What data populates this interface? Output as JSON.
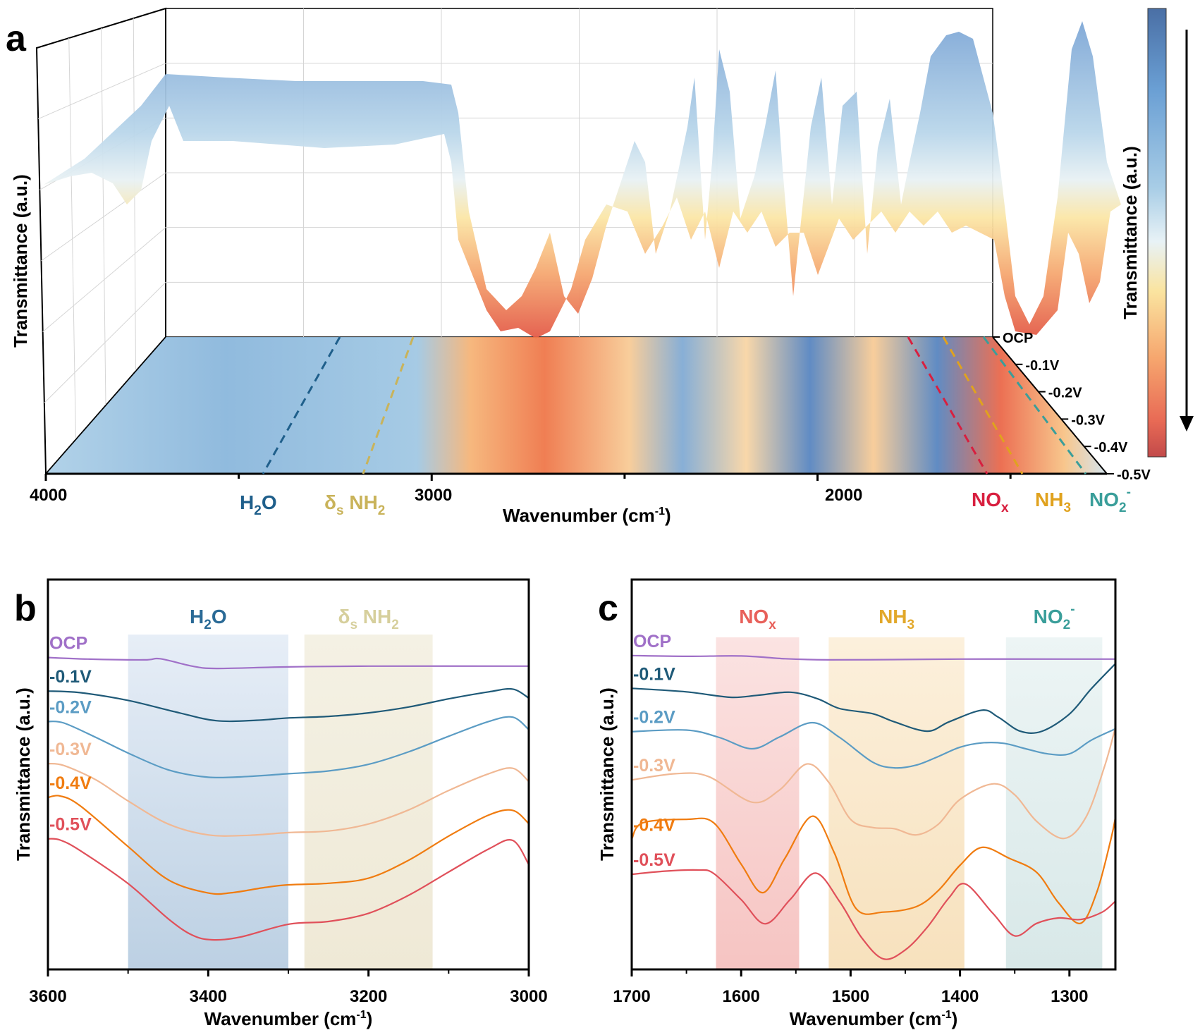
{
  "figure": {
    "panels": [
      "a",
      "b",
      "c"
    ]
  },
  "chart_data": [
    {
      "panel": "a",
      "type": "heatmap",
      "title": "",
      "subtitle": "3D surface of in situ FTIR spectra with projected contour map",
      "xlabel": "Wavenumber (cm",
      "xlabel_sup": "-1",
      "xlabel_close": ")",
      "ylabel": "Transmittance (a.u.)",
      "xlim": [
        4000,
        1250
      ],
      "x_ticks": [
        "4000",
        "3000",
        "2000"
      ],
      "x_tick_values": [
        4000,
        3000,
        2000
      ],
      "potential_axis": [
        "OCP",
        "-0.1V",
        "-0.2V",
        "-0.3V",
        "-0.4V",
        "-0.5V"
      ],
      "colorbar": {
        "label": "Transmittance (a.u.)",
        "colors": [
          "#4a6fa5",
          "#6a9fd4",
          "#a8cde6",
          "#e8f2f6",
          "#fae4a0",
          "#f6a66e",
          "#e86a55",
          "#c24a4a"
        ],
        "arrow": "down"
      },
      "annotations": [
        {
          "label": "H",
          "sub": "2",
          "tail": "O",
          "color": "#1f5f8b",
          "wavenumber": 3350
        },
        {
          "label": "δ",
          "sub": "s",
          "tail": " NH",
          "sub2": "2",
          "color": "#c9b35a",
          "wavenumber": 3150
        },
        {
          "label": "NO",
          "sub": "x",
          "tail": "",
          "color": "#d81f3f",
          "wavenumber": 1590
        },
        {
          "label": "NH",
          "sub": "3",
          "tail": "",
          "color": "#e0a21e",
          "wavenumber": 1460
        },
        {
          "label": "NO",
          "sub": "2",
          "tail": "",
          "sup": "-",
          "color": "#3a9e9a",
          "wavenumber": 1330
        }
      ]
    },
    {
      "panel": "b",
      "type": "line",
      "xlabel": "Wavenumber (cm",
      "xlabel_sup": "-1",
      "xlabel_close": ")",
      "ylabel": "Transmittance (a.u.)",
      "xlim": [
        3600,
        3000
      ],
      "ylim": [
        0,
        100
      ],
      "x_ticks": [
        "3600",
        "3400",
        "3200",
        "3000"
      ],
      "x_tick_values": [
        3600,
        3400,
        3200,
        3000
      ],
      "x_minor_ticks": [
        3500,
        3300,
        3100
      ],
      "bands": [
        {
          "name": "H2O",
          "label": "H",
          "sub": "2",
          "tail": "O",
          "from": 3500,
          "to": 3300,
          "color": "#7f9fc4",
          "text_color": "#2a6a96"
        },
        {
          "name": "δs NH2",
          "label": "δ",
          "sub": "s",
          "tail": " NH",
          "sub2": "2",
          "from": 3280,
          "to": 3120,
          "color": "#ddd6b0",
          "text_color": "#d6cf9c"
        }
      ],
      "series": [
        {
          "name": "OCP",
          "color": "#a070c8",
          "x": [
            3600,
            3550,
            3480,
            3460,
            3420,
            3390,
            3300,
            3200,
            3000
          ],
          "y": [
            80,
            79.6,
            79.4,
            79.7,
            77.8,
            77.2,
            77.6,
            77.8,
            77.8
          ]
        },
        {
          "name": "-0.1V",
          "color": "#1f5a78",
          "x": [
            3600,
            3560,
            3500,
            3440,
            3390,
            3340,
            3300,
            3250,
            3200,
            3150,
            3100,
            3050,
            3020,
            3000
          ],
          "y": [
            71.4,
            71,
            69,
            66,
            63.8,
            63.9,
            64.5,
            64.9,
            65.8,
            67.3,
            69.4,
            71.2,
            71.9,
            69.6
          ]
        },
        {
          "name": "-0.2V",
          "color": "#5b9cc4",
          "x": [
            3600,
            3580,
            3540,
            3500,
            3450,
            3400,
            3350,
            3300,
            3250,
            3200,
            3150,
            3100,
            3050,
            3020,
            3000
          ],
          "y": [
            63.6,
            63.2,
            59.5,
            55.5,
            51.2,
            49.3,
            49.5,
            50.2,
            50.9,
            52.6,
            55.8,
            59.8,
            63.6,
            64.7,
            61.5
          ]
        },
        {
          "name": "-0.3V",
          "color": "#f0b894",
          "x": [
            3600,
            3580,
            3540,
            3500,
            3450,
            3400,
            3350,
            3300,
            3250,
            3200,
            3150,
            3100,
            3050,
            3020,
            3000
          ],
          "y": [
            52.8,
            52.3,
            48.6,
            43.2,
            37.3,
            34.5,
            34.4,
            35.1,
            35.5,
            37.3,
            40.9,
            45.9,
            50.2,
            51.6,
            48.2
          ]
        },
        {
          "name": "-0.4V",
          "color": "#f07c10",
          "x": [
            3600,
            3585,
            3560,
            3500,
            3450,
            3400,
            3370,
            3330,
            3300,
            3250,
            3200,
            3150,
            3100,
            3050,
            3020,
            3000
          ],
          "y": [
            44.1,
            44.5,
            42,
            31.5,
            23,
            19.6,
            19.7,
            21,
            21.7,
            22.1,
            23.4,
            28,
            34.2,
            39.6,
            40.8,
            37.4
          ]
        },
        {
          "name": "-0.5V",
          "color": "#e0505a",
          "x": [
            3600,
            3585,
            3560,
            3500,
            3450,
            3420,
            3395,
            3360,
            3300,
            3250,
            3200,
            3150,
            3100,
            3050,
            3020,
            3000
          ],
          "y": [
            33.5,
            33.2,
            30.5,
            22,
            13,
            8.8,
            7.6,
            8.3,
            11.6,
            12.3,
            14.4,
            19,
            25,
            30.9,
            33.1,
            26.9
          ]
        }
      ],
      "curve_label_colors": {
        "OCP": "#a070c8",
        "-0.1V": "#1f5a78",
        "-0.2V": "#5b9cc4",
        "-0.3V": "#f0b894",
        "-0.4V": "#f07c10",
        "-0.5V": "#e0505a"
      },
      "legend": "left-inline"
    },
    {
      "panel": "c",
      "type": "line",
      "xlabel": "Wavenumber (cm",
      "xlabel_sup": "-1",
      "xlabel_close": ")",
      "ylabel": "Transmittance (a.u.)",
      "xlim": [
        1700,
        1258
      ],
      "ylim": [
        0,
        100
      ],
      "x_ticks": [
        "1700",
        "1600",
        "1500",
        "1400",
        "1300"
      ],
      "x_tick_values": [
        1700,
        1600,
        1500,
        1400,
        1300
      ],
      "x_minor_ticks": [
        1650,
        1550,
        1450,
        1350
      ],
      "bands": [
        {
          "name": "NOx",
          "label": "NO",
          "sub": "x",
          "tail": "",
          "from": 1623,
          "to": 1547,
          "color": "#f4b3b0",
          "text_color": "#e8605a"
        },
        {
          "name": "NH3",
          "label": "NH",
          "sub": "3",
          "tail": "",
          "from": 1520,
          "to": 1396,
          "color": "#f6dcae",
          "text_color": "#e2a82a"
        },
        {
          "name": "NO2-",
          "label": "NO",
          "sub": "2",
          "tail": "",
          "sup": "-",
          "from": 1358,
          "to": 1270,
          "color": "#c9e0e0",
          "text_color": "#3a9e9a"
        }
      ],
      "series": [
        {
          "name": "OCP",
          "color": "#a070c8",
          "x": [
            1700,
            1650,
            1600,
            1560,
            1520,
            1450,
            1400,
            1300,
            1258
          ],
          "y": [
            80.5,
            80.3,
            80.4,
            79.7,
            79.4,
            79.5,
            79.6,
            79.6,
            79.6
          ]
        },
        {
          "name": "-0.1V",
          "color": "#1f5a78",
          "x": [
            1700,
            1650,
            1610,
            1585,
            1555,
            1530,
            1510,
            1480,
            1460,
            1430,
            1410,
            1380,
            1365,
            1345,
            1325,
            1300,
            1280,
            1258
          ],
          "y": [
            72.1,
            71.2,
            69.8,
            70.3,
            71.1,
            69.4,
            66.9,
            65.6,
            63.5,
            61.1,
            63.5,
            66.5,
            64.7,
            61.1,
            61.1,
            65.5,
            72,
            78.4
          ]
        },
        {
          "name": "-0.2V",
          "color": "#5b9cc4",
          "x": [
            1700,
            1650,
            1620,
            1590,
            1565,
            1535,
            1510,
            1480,
            1460,
            1440,
            1420,
            1400,
            1380,
            1360,
            1340,
            1320,
            1300,
            1280,
            1258
          ],
          "y": [
            61,
            61.4,
            59.5,
            56.6,
            59.6,
            63.3,
            59.5,
            53.2,
            51.7,
            52.4,
            54.6,
            57,
            58.1,
            58,
            56.6,
            55.3,
            55.3,
            58.8,
            61.7
          ]
        },
        {
          "name": "-0.3V",
          "color": "#f0b894",
          "x": [
            1700,
            1660,
            1630,
            1590,
            1565,
            1540,
            1520,
            1500,
            1480,
            1460,
            1440,
            1420,
            1400,
            1370,
            1350,
            1330,
            1305,
            1285,
            1268,
            1258
          ],
          "y": [
            48.6,
            50.2,
            49.5,
            42.9,
            46,
            52.7,
            48,
            38.5,
            36.4,
            36.1,
            34.5,
            37.2,
            43.6,
            47.6,
            44.8,
            38,
            33.6,
            39,
            52,
            62
          ]
        },
        {
          "name": "-0.4V",
          "color": "#f07c10",
          "x": [
            1700,
            1690,
            1650,
            1625,
            1600,
            1580,
            1560,
            1535,
            1515,
            1495,
            1470,
            1440,
            1420,
            1400,
            1380,
            1355,
            1330,
            1310,
            1290,
            1275,
            1262,
            1258
          ],
          "y": [
            33.4,
            37.6,
            38.5,
            37.6,
            27,
            19.7,
            28.5,
            39.3,
            30,
            15.6,
            14.7,
            16.1,
            20.2,
            26.7,
            31.3,
            28.5,
            24.9,
            17.1,
            11.8,
            19.8,
            33.5,
            39
          ]
        },
        {
          "name": "-0.5V",
          "color": "#e0505a",
          "x": [
            1700,
            1670,
            1640,
            1625,
            1600,
            1578,
            1555,
            1532,
            1510,
            1490,
            1470,
            1450,
            1430,
            1410,
            1395,
            1370,
            1350,
            1330,
            1310,
            1290,
            1270,
            1258
          ],
          "y": [
            24.4,
            25.2,
            25.5,
            24.6,
            17.9,
            11.7,
            18,
            24.7,
            17.4,
            8.2,
            2.7,
            5,
            10.8,
            18.4,
            21.9,
            14.4,
            8.6,
            11.8,
            13.2,
            12.8,
            14.7,
            17.5
          ]
        }
      ],
      "curve_label_colors": {
        "OCP": "#a070c8",
        "-0.1V": "#1f5a78",
        "-0.2V": "#5b9cc4",
        "-0.3V": "#f0b894",
        "-0.4V": "#f07c10",
        "-0.5V": "#e0505a"
      },
      "legend": "left-inline"
    }
  ]
}
